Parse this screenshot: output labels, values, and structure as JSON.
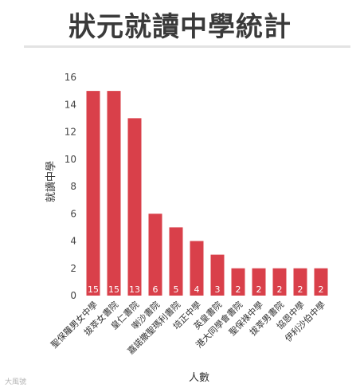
{
  "title": "狀元就讀中學統計",
  "watermark": "大風號",
  "chart_data": {
    "type": "bar",
    "title": "狀元就讀中學統計",
    "xlabel": "人數",
    "ylabel": "就讀中學",
    "ylim": [
      0,
      16
    ],
    "yticks": [
      0,
      2,
      4,
      6,
      8,
      10,
      12,
      14,
      16
    ],
    "grid": false,
    "categories": [
      "聖保羅男女中學",
      "拔萃女書院",
      "皇仁書院",
      "喇沙書院",
      "嘉諾撒聖瑪利書院",
      "培正中學",
      "英皇書院",
      "港大同學會書院",
      "聖保祿中學",
      "拔萃男書院",
      "協恩中學",
      "伊利沙伯中學"
    ],
    "values": [
      15,
      15,
      13,
      6,
      5,
      4,
      3,
      2,
      2,
      2,
      2,
      2
    ],
    "bar_color": "#d9404a",
    "label_color": "#ffffff"
  }
}
